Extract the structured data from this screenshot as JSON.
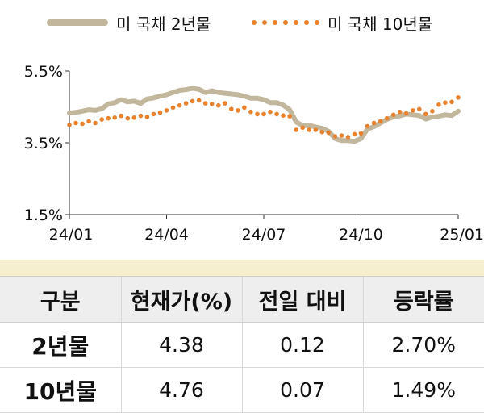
{
  "chart_data": {
    "type": "line",
    "x_ticks": [
      "24/01",
      "24/04",
      "24/07",
      "24/10",
      "25/01"
    ],
    "y_ticks": [
      "1.5%",
      "3.5%",
      "5.5%"
    ],
    "ylim": [
      1.5,
      5.5
    ],
    "x_range": [
      "24/01",
      "25/01"
    ],
    "grid": false,
    "legend_position": "top",
    "series": [
      {
        "name": "미 국채 2년물",
        "style": "solid",
        "color": "#c2b79c",
        "x": [
          0.0,
          0.2,
          0.4,
          0.6,
          0.8,
          1.0,
          1.2,
          1.4,
          1.6,
          1.8,
          2.0,
          2.2,
          2.4,
          2.6,
          2.8,
          3.0,
          3.2,
          3.4,
          3.6,
          3.8,
          4.0,
          4.2,
          4.4,
          4.6,
          4.8,
          5.0,
          5.2,
          5.4,
          5.6,
          5.8,
          6.0,
          6.2,
          6.4,
          6.6,
          6.8,
          7.0,
          7.2,
          7.4,
          7.6,
          7.8,
          8.0,
          8.2,
          8.4,
          8.6,
          8.8,
          9.0,
          9.2,
          9.4,
          9.6,
          9.8,
          10.0,
          10.2,
          10.4,
          10.6,
          10.8,
          11.0,
          11.2,
          11.4,
          11.6,
          11.8,
          12.0
        ],
        "values": [
          4.33,
          4.35,
          4.38,
          4.42,
          4.4,
          4.45,
          4.58,
          4.62,
          4.7,
          4.64,
          4.66,
          4.6,
          4.72,
          4.75,
          4.8,
          4.84,
          4.9,
          4.96,
          4.98,
          5.02,
          4.99,
          4.9,
          4.95,
          4.9,
          4.88,
          4.86,
          4.84,
          4.8,
          4.74,
          4.74,
          4.7,
          4.62,
          4.62,
          4.55,
          4.42,
          4.08,
          3.98,
          3.98,
          3.94,
          3.9,
          3.82,
          3.62,
          3.56,
          3.56,
          3.54,
          3.62,
          3.88,
          3.95,
          4.05,
          4.15,
          4.22,
          4.25,
          4.3,
          4.28,
          4.26,
          4.16,
          4.22,
          4.24,
          4.28,
          4.26,
          4.38
        ]
      },
      {
        "name": "미 국채 10년물",
        "style": "dotted",
        "color": "#e8822e",
        "x": [
          0.0,
          0.2,
          0.4,
          0.6,
          0.8,
          1.0,
          1.2,
          1.4,
          1.6,
          1.8,
          2.0,
          2.2,
          2.4,
          2.6,
          2.8,
          3.0,
          3.2,
          3.4,
          3.6,
          3.8,
          4.0,
          4.2,
          4.4,
          4.6,
          4.8,
          5.0,
          5.2,
          5.4,
          5.6,
          5.8,
          6.0,
          6.2,
          6.4,
          6.6,
          6.8,
          7.0,
          7.2,
          7.4,
          7.6,
          7.8,
          8.0,
          8.2,
          8.4,
          8.6,
          8.8,
          9.0,
          9.2,
          9.4,
          9.6,
          9.8,
          10.0,
          10.2,
          10.4,
          10.6,
          10.8,
          11.0,
          11.2,
          11.4,
          11.6,
          11.8,
          12.0
        ],
        "values": [
          4.0,
          4.05,
          4.03,
          4.1,
          4.05,
          4.15,
          4.18,
          4.2,
          4.25,
          4.18,
          4.2,
          4.25,
          4.22,
          4.3,
          4.34,
          4.4,
          4.48,
          4.54,
          4.6,
          4.66,
          4.68,
          4.6,
          4.58,
          4.54,
          4.6,
          4.44,
          4.4,
          4.48,
          4.36,
          4.3,
          4.3,
          4.36,
          4.3,
          4.26,
          4.24,
          3.86,
          3.92,
          3.86,
          3.86,
          3.8,
          3.78,
          3.68,
          3.7,
          3.66,
          3.74,
          3.76,
          3.96,
          4.05,
          4.1,
          4.18,
          4.28,
          4.36,
          4.32,
          4.4,
          4.44,
          4.3,
          4.38,
          4.56,
          4.62,
          4.64,
          4.76
        ]
      }
    ]
  },
  "table": {
    "headers": [
      "구분",
      "현재가(%)",
      "전일 대비",
      "등락률"
    ],
    "rows": [
      [
        "2년물",
        "4.38",
        "0.12",
        "2.70%"
      ],
      [
        "10년물",
        "4.76",
        "0.07",
        "1.49%"
      ]
    ]
  }
}
